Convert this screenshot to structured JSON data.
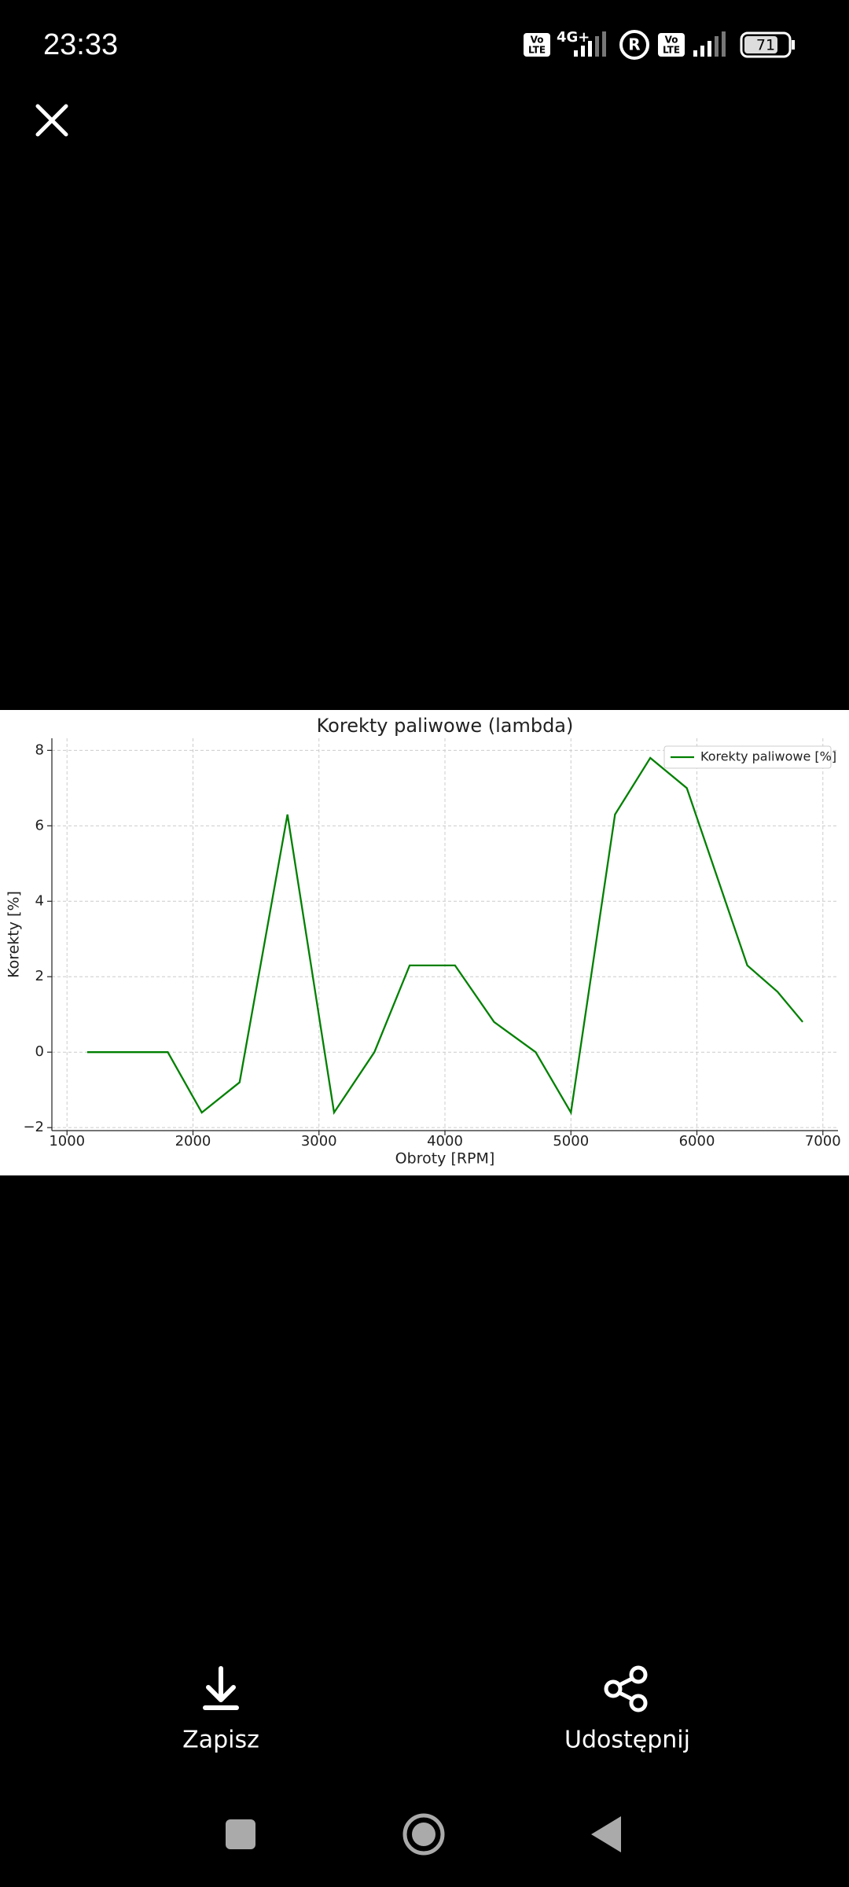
{
  "status_bar": {
    "time": "23:33",
    "badge_top": "Vo",
    "badge_bottom": "LTE",
    "network": "4G+",
    "roaming": "R",
    "battery": "71"
  },
  "chart_data": {
    "type": "line",
    "title": "Korekty paliwowe (lambda)",
    "x_label": "Obroty [RPM]",
    "y_label": "Korekty [%]",
    "x": [
      1160,
      1800,
      2070,
      2370,
      2750,
      3120,
      3440,
      3720,
      4080,
      4390,
      4720,
      5000,
      5350,
      5630,
      5920,
      6400,
      6640,
      6840
    ],
    "series": [
      {
        "name": "Korekty paliwowe [%]",
        "color": "#008000",
        "values": [
          0,
          0,
          -1.6,
          -0.8,
          6.3,
          -1.6,
          0,
          2.3,
          2.3,
          0.8,
          0,
          -1.6,
          6.3,
          7.8,
          7.0,
          2.3,
          1.6,
          0.8
        ]
      }
    ],
    "xlim": [
      880,
      7120
    ],
    "ylim": [
      -2.08,
      8.32
    ],
    "xticks": [
      1000,
      2000,
      3000,
      4000,
      5000,
      6000,
      7000
    ],
    "yticks": [
      {
        "value": -2,
        "label": "−2"
      },
      0,
      2,
      4,
      6,
      8
    ],
    "grid": true,
    "legend": "upper right"
  },
  "actions": {
    "save": "Zapisz",
    "share": "Udostępnij"
  }
}
